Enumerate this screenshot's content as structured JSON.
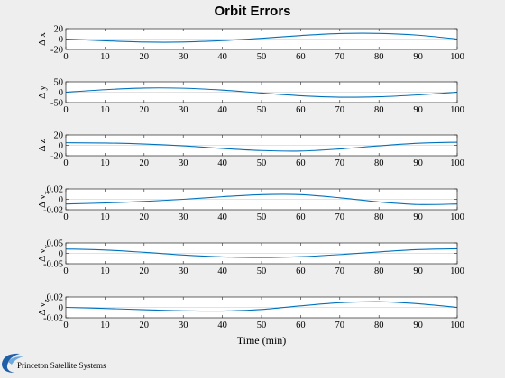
{
  "colors": {
    "background": "#eeeeee",
    "axes": "#ffffff",
    "line": "#0072bd",
    "frame": "#262626",
    "grid": "#d9d9d9"
  },
  "logo": {
    "text": "Princeton Satellite Systems",
    "icon": "pss-swoosh-icon"
  },
  "chart_data": {
    "type": "line",
    "title": "Orbit Errors",
    "xlabel": "Time (min)",
    "xlim": [
      0,
      100
    ],
    "xticks": [
      "0",
      "10",
      "20",
      "30",
      "40",
      "50",
      "60",
      "70",
      "80",
      "90",
      "100"
    ],
    "grid": "off",
    "subplots": [
      {
        "ylabel": [
          "Δ",
          "x",
          ""
        ],
        "ylim": [
          -20,
          20
        ],
        "yticks": [
          "20",
          "0",
          "-20"
        ],
        "zero_line": true,
        "x": [
          0,
          10,
          20,
          30,
          40,
          50,
          60,
          70,
          80,
          90,
          100
        ],
        "y": [
          0,
          -3.3,
          -5.8,
          -5.8,
          -3.0,
          1.5,
          6.7,
          10.5,
          10.8,
          7.4,
          0
        ]
      },
      {
        "ylabel": [
          "Δ",
          "y",
          ""
        ],
        "ylim": [
          -50,
          50
        ],
        "yticks": [
          "50",
          "0",
          "-50"
        ],
        "zero_line": true,
        "x": [
          0,
          10,
          20,
          30,
          40,
          50,
          60,
          70,
          80,
          90,
          100
        ],
        "y": [
          0,
          12,
          20,
          19,
          10,
          -4,
          -17,
          -24,
          -22,
          -13,
          0
        ]
      },
      {
        "ylabel": [
          "Δ",
          "z",
          ""
        ],
        "ylim": [
          -20,
          20
        ],
        "yticks": [
          "20",
          "0",
          "-20"
        ],
        "zero_line": true,
        "x": [
          0,
          10,
          20,
          30,
          40,
          50,
          60,
          70,
          80,
          90,
          100
        ],
        "y": [
          5,
          4.5,
          2.5,
          -1,
          -6,
          -10,
          -11,
          -7,
          -1,
          4,
          6
        ]
      },
      {
        "ylabel": [
          "Δ",
          "v",
          "x"
        ],
        "ylim": [
          -0.02,
          0.02
        ],
        "yticks": [
          "0.02",
          "0",
          "-0.02"
        ],
        "zero_line": true,
        "x": [
          0,
          10,
          20,
          30,
          40,
          50,
          60,
          70,
          80,
          90,
          100
        ],
        "y": [
          -0.009,
          -0.007,
          -0.004,
          0,
          0.005,
          0.009,
          0.009,
          0.003,
          -0.005,
          -0.01,
          -0.009
        ]
      },
      {
        "ylabel": [
          "Δ",
          "v",
          "y"
        ],
        "ylim": [
          -0.05,
          0.05
        ],
        "yticks": [
          "0.05",
          "0",
          "-0.05"
        ],
        "zero_line": true,
        "x": [
          0,
          10,
          20,
          30,
          40,
          50,
          60,
          70,
          80,
          90,
          100
        ],
        "y": [
          0.021,
          0.016,
          0.005,
          -0.008,
          -0.017,
          -0.02,
          -0.016,
          -0.006,
          0.007,
          0.018,
          0.022
        ]
      },
      {
        "ylabel": [
          "Δ",
          "v",
          "z"
        ],
        "ylim": [
          -0.02,
          0.02
        ],
        "yticks": [
          "0.02",
          "0",
          "-0.02"
        ],
        "zero_line": true,
        "x": [
          0,
          10,
          20,
          30,
          40,
          50,
          60,
          70,
          80,
          90,
          100
        ],
        "y": [
          0,
          -0.002,
          -0.0045,
          -0.0065,
          -0.007,
          -0.004,
          0.003,
          0.009,
          0.011,
          0.007,
          0
        ]
      }
    ]
  }
}
